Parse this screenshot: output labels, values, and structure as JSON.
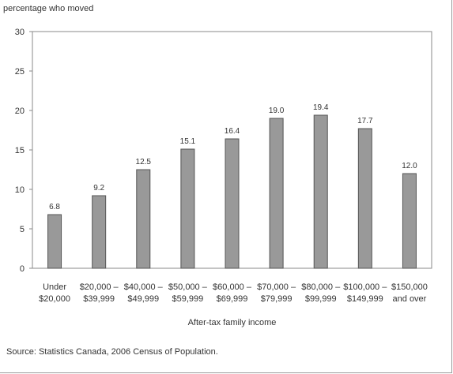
{
  "chart_data": {
    "type": "bar",
    "ylabel": "percentage who moved",
    "xlabel": "After-tax family income",
    "ylim": [
      0,
      30
    ],
    "yticks": [
      0,
      5,
      10,
      15,
      20,
      25,
      30
    ],
    "grid": false,
    "categories": [
      [
        "Under",
        "$20,000"
      ],
      [
        "$20,000 –",
        "$39,999"
      ],
      [
        "$40,000 –",
        "$49,999"
      ],
      [
        "$50,000 –",
        "$59,999"
      ],
      [
        "$60,000 –",
        "$69,999"
      ],
      [
        "$70,000 –",
        "$79,999"
      ],
      [
        "$80,000 –",
        "$99,999"
      ],
      [
        "$100,000 –",
        "$149,999"
      ],
      [
        "$150,000",
        "and over"
      ]
    ],
    "values": [
      6.8,
      9.2,
      12.5,
      15.1,
      16.4,
      19.0,
      19.4,
      17.7,
      12.0
    ],
    "value_labels": [
      "6.8",
      "9.2",
      "12.5",
      "15.1",
      "16.4",
      "19.0",
      "19.4",
      "17.7",
      "12.0"
    ],
    "bar_color": "#999999",
    "bar_edge_color": "#555555"
  },
  "source": "Source: Statistics Canada, 2006 Census of Population."
}
